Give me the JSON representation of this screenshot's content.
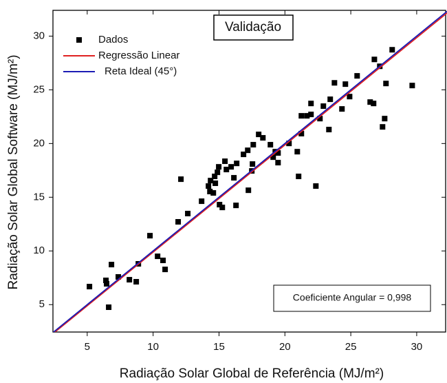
{
  "chart_data": {
    "type": "scatter",
    "title": "Validação",
    "x_label": "Radiação Solar Global de Referência (MJ/m²)",
    "y_label": "Radiação Solar Global Software (MJ/m²)",
    "annotation": "Coeficiente Angular = 0,998",
    "xlim": [
      2.4,
      32.3
    ],
    "ylim": [
      2.45,
      32.4
    ],
    "xticks": [
      5,
      10,
      15,
      20,
      25,
      30
    ],
    "yticks": [
      5,
      10,
      15,
      20,
      25,
      30
    ],
    "legend": "upper left",
    "series": [
      {
        "name": "Dados",
        "color": "#000000",
        "marker": "square",
        "x": [
          5.17,
          6.42,
          6.47,
          6.63,
          6.84,
          7.36,
          8.2,
          8.72,
          8.88,
          9.76,
          10.34,
          10.75,
          10.91,
          11.9,
          12.11,
          12.63,
          13.68,
          14.2,
          14.31,
          14.36,
          14.57,
          14.67,
          14.72,
          14.88,
          14.98,
          15.04,
          15.25,
          15.45,
          15.56,
          15.92,
          16.13,
          16.29,
          16.34,
          16.86,
          17.18,
          17.23,
          17.49,
          17.54,
          17.6,
          18.01,
          18.33,
          18.9,
          19.11,
          19.27,
          19.48,
          19.48,
          20.31,
          20.94,
          21.04,
          21.25,
          21.25,
          21.67,
          21.98,
          21.98,
          22.35,
          22.66,
          22.92,
          23.34,
          23.44,
          23.76,
          24.33,
          24.59,
          24.91,
          25.48,
          26.47,
          26.73,
          26.79,
          27.2,
          27.41,
          27.57,
          27.67,
          28.14,
          29.66
        ],
        "values": [
          6.68,
          7.26,
          6.94,
          4.76,
          8.73,
          7.58,
          7.32,
          7.13,
          8.8,
          11.42,
          9.5,
          9.12,
          8.28,
          12.71,
          16.68,
          13.48,
          14.63,
          16.04,
          15.53,
          16.55,
          15.4,
          16.94,
          16.3,
          17.32,
          17.83,
          14.31,
          14.05,
          18.35,
          17.58,
          17.83,
          16.81,
          14.24,
          18.15,
          18.99,
          19.37,
          15.65,
          17.45,
          18.09,
          19.89,
          20.85,
          20.53,
          19.89,
          18.73,
          19.24,
          19.12,
          18.22,
          20.01,
          19.24,
          16.94,
          20.92,
          22.58,
          22.58,
          23.73,
          22.71,
          16.04,
          22.32,
          23.48,
          21.3,
          24.12,
          25.65,
          23.22,
          25.53,
          24.37,
          26.3,
          23.86,
          23.73,
          27.83,
          27.19,
          21.55,
          22.32,
          25.59,
          28.73,
          25.4
        ]
      },
      {
        "name": "Regressão Linear",
        "color": "#e02020",
        "marker": "line",
        "x": [
          2.4,
          32.3
        ],
        "values": [
          2.3,
          32.15
        ]
      },
      {
        "name": "Reta Ideal (45°)",
        "color": "#1c1cb4",
        "marker": "line",
        "x": [
          2.4,
          32.3
        ],
        "values": [
          2.4,
          32.3
        ]
      }
    ]
  }
}
